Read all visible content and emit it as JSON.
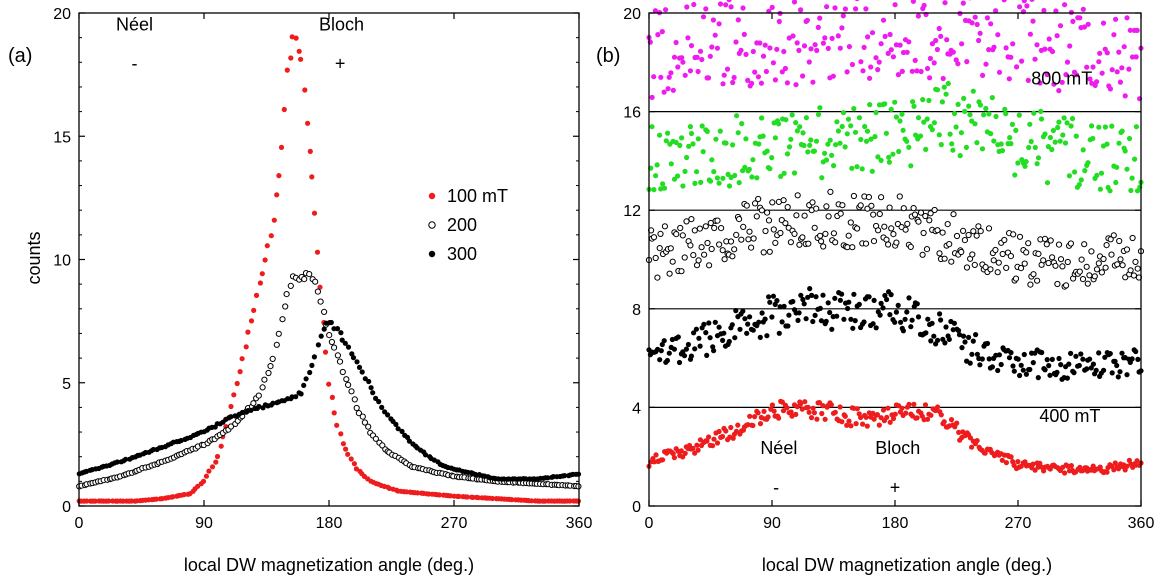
{
  "chart_data": [
    {
      "panel": "(a)",
      "type": "scatter",
      "xlabel": "local DW magnetization angle (deg.)",
      "ylabel": "counts",
      "xlim": [
        0,
        360
      ],
      "ylim": [
        0,
        20
      ],
      "xticks": [
        0,
        90,
        180,
        270,
        360
      ],
      "yticks": [
        0,
        5,
        10,
        15,
        20
      ],
      "grid": false,
      "legend_position": "right",
      "annotations": [
        {
          "text": "Néel",
          "x": 40,
          "y": 19.3
        },
        {
          "text": "-",
          "x": 40,
          "y": 17.7
        },
        {
          "text": "Bloch",
          "x": 189,
          "y": 19.3
        },
        {
          "text": "+",
          "x": 188,
          "y": 17.7
        }
      ],
      "series": [
        {
          "name": "100 mT",
          "color": "#ee1c1c",
          "marker": "filled",
          "x": [
            0,
            20,
            40,
            60,
            80,
            90,
            100,
            110,
            120,
            130,
            140,
            145,
            150,
            155,
            160,
            165,
            170,
            175,
            180,
            185,
            190,
            200,
            210,
            230,
            250,
            270,
            300,
            330,
            360
          ],
          "y": [
            0.2,
            0.2,
            0.2,
            0.3,
            0.5,
            1.0,
            2.0,
            4.0,
            6.5,
            9.0,
            11.5,
            14.0,
            17.5,
            19.5,
            18.0,
            15.0,
            12.0,
            8.0,
            5.0,
            3.5,
            2.5,
            1.5,
            1.0,
            0.6,
            0.5,
            0.4,
            0.3,
            0.2,
            0.2
          ]
        },
        {
          "name": "200",
          "color": "#000000",
          "marker": "open",
          "x": [
            0,
            30,
            60,
            90,
            100,
            110,
            120,
            130,
            140,
            150,
            155,
            160,
            165,
            170,
            175,
            180,
            190,
            200,
            210,
            220,
            240,
            270,
            300,
            330,
            360
          ],
          "y": [
            0.8,
            1.2,
            1.8,
            2.5,
            2.8,
            3.2,
            3.8,
            4.5,
            6.0,
            8.5,
            9.4,
            9.2,
            9.4,
            9.0,
            8.0,
            7.0,
            5.5,
            4.0,
            3.0,
            2.3,
            1.6,
            1.2,
            1.0,
            0.9,
            0.8
          ]
        },
        {
          "name": "300",
          "color": "#000000",
          "marker": "filled",
          "x": [
            0,
            30,
            60,
            90,
            110,
            130,
            150,
            160,
            170,
            175,
            180,
            185,
            190,
            200,
            210,
            220,
            240,
            260,
            270,
            300,
            330,
            360
          ],
          "y": [
            1.3,
            1.8,
            2.4,
            3.0,
            3.6,
            4.0,
            4.3,
            4.6,
            6.0,
            7.2,
            7.5,
            7.2,
            6.8,
            5.8,
            4.8,
            3.8,
            2.5,
            1.7,
            1.5,
            1.1,
            1.1,
            1.3
          ]
        }
      ]
    },
    {
      "panel": "(b)",
      "type": "scatter",
      "xlabel": "local DW magnetization angle (deg.)",
      "ylabel": "",
      "xlim": [
        0,
        360
      ],
      "ylim": [
        0,
        20
      ],
      "xticks": [
        0,
        90,
        180,
        270,
        360
      ],
      "yticks": [
        0,
        4,
        8,
        12,
        16,
        20
      ],
      "grid": true,
      "annotations": [
        {
          "text": "800 mT",
          "x": 302,
          "y": 17.1
        },
        {
          "text": "400 mT",
          "x": 308,
          "y": 3.4
        },
        {
          "text": "Néel",
          "x": 95,
          "y": 2.1
        },
        {
          "text": "-",
          "x": 93,
          "y": 0.5
        },
        {
          "text": "Bloch",
          "x": 182,
          "y": 2.1
        },
        {
          "text": "+",
          "x": 180,
          "y": 0.5
        }
      ],
      "series": [
        {
          "color": "#ee1cee",
          "marker": "filled",
          "x": [
            0,
            30,
            60,
            90,
            120,
            150,
            180,
            210,
            240,
            255,
            270,
            300,
            330,
            360
          ],
          "y": [
            18.3,
            18.5,
            18.8,
            19.0,
            19.0,
            19.1,
            19.1,
            19.2,
            19.3,
            19.4,
            19.1,
            18.7,
            18.4,
            18.3
          ]
        },
        {
          "color": "#22dd22",
          "marker": "filled",
          "x": [
            0,
            30,
            60,
            90,
            120,
            150,
            180,
            200,
            220,
            240,
            255,
            270,
            300,
            330,
            360
          ],
          "y": [
            14.2,
            14.3,
            14.4,
            14.6,
            14.7,
            14.8,
            15.0,
            15.3,
            15.6,
            15.8,
            15.3,
            14.8,
            14.4,
            14.2,
            14.2
          ]
        },
        {
          "color": "#000000",
          "marker": "open",
          "x": [
            0,
            30,
            60,
            90,
            120,
            150,
            180,
            200,
            220,
            240,
            270,
            300,
            330,
            360
          ],
          "y": [
            10.2,
            10.6,
            11.1,
            11.4,
            11.6,
            11.5,
            11.5,
            11.3,
            10.9,
            10.4,
            10.0,
            9.9,
            10.0,
            10.1
          ]
        },
        {
          "color": "#000000",
          "marker": "filled",
          "x": [
            0,
            30,
            60,
            90,
            120,
            150,
            180,
            200,
            220,
            240,
            270,
            300,
            330,
            360
          ],
          "y": [
            6.0,
            6.5,
            7.2,
            7.8,
            8.0,
            7.9,
            7.9,
            7.5,
            6.9,
            6.3,
            5.9,
            5.7,
            5.7,
            5.9
          ]
        },
        {
          "color": "#ee1c1c",
          "marker": "filled",
          "x": [
            0,
            30,
            60,
            90,
            110,
            130,
            150,
            170,
            190,
            210,
            225,
            240,
            270,
            300,
            330,
            360
          ],
          "y": [
            1.8,
            2.3,
            3.0,
            3.8,
            4.0,
            3.9,
            3.6,
            3.6,
            3.9,
            3.8,
            3.1,
            2.4,
            1.7,
            1.5,
            1.5,
            1.7
          ]
        }
      ]
    }
  ]
}
